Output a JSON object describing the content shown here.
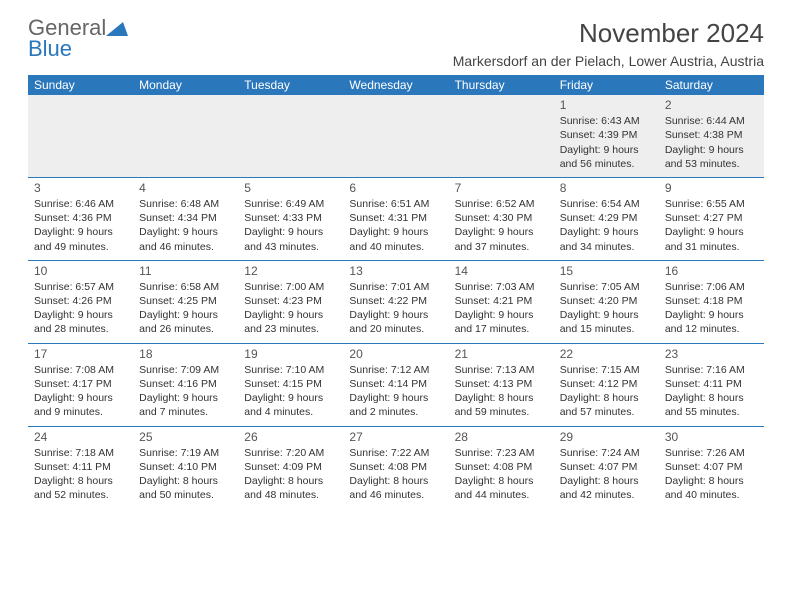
{
  "logo": {
    "part1": "General",
    "part2": "Blue"
  },
  "title": "November 2024",
  "location": "Markersdorf an der Pielach, Lower Austria, Austria",
  "day_headers": [
    "Sunday",
    "Monday",
    "Tuesday",
    "Wednesday",
    "Thursday",
    "Friday",
    "Saturday"
  ],
  "colors": {
    "header_bg": "#2a77bc",
    "header_fg": "#ffffff",
    "divider": "#2a77bc",
    "week0_bg": "#eeeeee",
    "text": "#333333"
  },
  "weeks": [
    [
      null,
      null,
      null,
      null,
      null,
      {
        "n": "1",
        "sr": "Sunrise: 6:43 AM",
        "ss": "Sunset: 4:39 PM",
        "d1": "Daylight: 9 hours",
        "d2": "and 56 minutes."
      },
      {
        "n": "2",
        "sr": "Sunrise: 6:44 AM",
        "ss": "Sunset: 4:38 PM",
        "d1": "Daylight: 9 hours",
        "d2": "and 53 minutes."
      }
    ],
    [
      {
        "n": "3",
        "sr": "Sunrise: 6:46 AM",
        "ss": "Sunset: 4:36 PM",
        "d1": "Daylight: 9 hours",
        "d2": "and 49 minutes."
      },
      {
        "n": "4",
        "sr": "Sunrise: 6:48 AM",
        "ss": "Sunset: 4:34 PM",
        "d1": "Daylight: 9 hours",
        "d2": "and 46 minutes."
      },
      {
        "n": "5",
        "sr": "Sunrise: 6:49 AM",
        "ss": "Sunset: 4:33 PM",
        "d1": "Daylight: 9 hours",
        "d2": "and 43 minutes."
      },
      {
        "n": "6",
        "sr": "Sunrise: 6:51 AM",
        "ss": "Sunset: 4:31 PM",
        "d1": "Daylight: 9 hours",
        "d2": "and 40 minutes."
      },
      {
        "n": "7",
        "sr": "Sunrise: 6:52 AM",
        "ss": "Sunset: 4:30 PM",
        "d1": "Daylight: 9 hours",
        "d2": "and 37 minutes."
      },
      {
        "n": "8",
        "sr": "Sunrise: 6:54 AM",
        "ss": "Sunset: 4:29 PM",
        "d1": "Daylight: 9 hours",
        "d2": "and 34 minutes."
      },
      {
        "n": "9",
        "sr": "Sunrise: 6:55 AM",
        "ss": "Sunset: 4:27 PM",
        "d1": "Daylight: 9 hours",
        "d2": "and 31 minutes."
      }
    ],
    [
      {
        "n": "10",
        "sr": "Sunrise: 6:57 AM",
        "ss": "Sunset: 4:26 PM",
        "d1": "Daylight: 9 hours",
        "d2": "and 28 minutes."
      },
      {
        "n": "11",
        "sr": "Sunrise: 6:58 AM",
        "ss": "Sunset: 4:25 PM",
        "d1": "Daylight: 9 hours",
        "d2": "and 26 minutes."
      },
      {
        "n": "12",
        "sr": "Sunrise: 7:00 AM",
        "ss": "Sunset: 4:23 PM",
        "d1": "Daylight: 9 hours",
        "d2": "and 23 minutes."
      },
      {
        "n": "13",
        "sr": "Sunrise: 7:01 AM",
        "ss": "Sunset: 4:22 PM",
        "d1": "Daylight: 9 hours",
        "d2": "and 20 minutes."
      },
      {
        "n": "14",
        "sr": "Sunrise: 7:03 AM",
        "ss": "Sunset: 4:21 PM",
        "d1": "Daylight: 9 hours",
        "d2": "and 17 minutes."
      },
      {
        "n": "15",
        "sr": "Sunrise: 7:05 AM",
        "ss": "Sunset: 4:20 PM",
        "d1": "Daylight: 9 hours",
        "d2": "and 15 minutes."
      },
      {
        "n": "16",
        "sr": "Sunrise: 7:06 AM",
        "ss": "Sunset: 4:18 PM",
        "d1": "Daylight: 9 hours",
        "d2": "and 12 minutes."
      }
    ],
    [
      {
        "n": "17",
        "sr": "Sunrise: 7:08 AM",
        "ss": "Sunset: 4:17 PM",
        "d1": "Daylight: 9 hours",
        "d2": "and 9 minutes."
      },
      {
        "n": "18",
        "sr": "Sunrise: 7:09 AM",
        "ss": "Sunset: 4:16 PM",
        "d1": "Daylight: 9 hours",
        "d2": "and 7 minutes."
      },
      {
        "n": "19",
        "sr": "Sunrise: 7:10 AM",
        "ss": "Sunset: 4:15 PM",
        "d1": "Daylight: 9 hours",
        "d2": "and 4 minutes."
      },
      {
        "n": "20",
        "sr": "Sunrise: 7:12 AM",
        "ss": "Sunset: 4:14 PM",
        "d1": "Daylight: 9 hours",
        "d2": "and 2 minutes."
      },
      {
        "n": "21",
        "sr": "Sunrise: 7:13 AM",
        "ss": "Sunset: 4:13 PM",
        "d1": "Daylight: 8 hours",
        "d2": "and 59 minutes."
      },
      {
        "n": "22",
        "sr": "Sunrise: 7:15 AM",
        "ss": "Sunset: 4:12 PM",
        "d1": "Daylight: 8 hours",
        "d2": "and 57 minutes."
      },
      {
        "n": "23",
        "sr": "Sunrise: 7:16 AM",
        "ss": "Sunset: 4:11 PM",
        "d1": "Daylight: 8 hours",
        "d2": "and 55 minutes."
      }
    ],
    [
      {
        "n": "24",
        "sr": "Sunrise: 7:18 AM",
        "ss": "Sunset: 4:11 PM",
        "d1": "Daylight: 8 hours",
        "d2": "and 52 minutes."
      },
      {
        "n": "25",
        "sr": "Sunrise: 7:19 AM",
        "ss": "Sunset: 4:10 PM",
        "d1": "Daylight: 8 hours",
        "d2": "and 50 minutes."
      },
      {
        "n": "26",
        "sr": "Sunrise: 7:20 AM",
        "ss": "Sunset: 4:09 PM",
        "d1": "Daylight: 8 hours",
        "d2": "and 48 minutes."
      },
      {
        "n": "27",
        "sr": "Sunrise: 7:22 AM",
        "ss": "Sunset: 4:08 PM",
        "d1": "Daylight: 8 hours",
        "d2": "and 46 minutes."
      },
      {
        "n": "28",
        "sr": "Sunrise: 7:23 AM",
        "ss": "Sunset: 4:08 PM",
        "d1": "Daylight: 8 hours",
        "d2": "and 44 minutes."
      },
      {
        "n": "29",
        "sr": "Sunrise: 7:24 AM",
        "ss": "Sunset: 4:07 PM",
        "d1": "Daylight: 8 hours",
        "d2": "and 42 minutes."
      },
      {
        "n": "30",
        "sr": "Sunrise: 7:26 AM",
        "ss": "Sunset: 4:07 PM",
        "d1": "Daylight: 8 hours",
        "d2": "and 40 minutes."
      }
    ]
  ]
}
